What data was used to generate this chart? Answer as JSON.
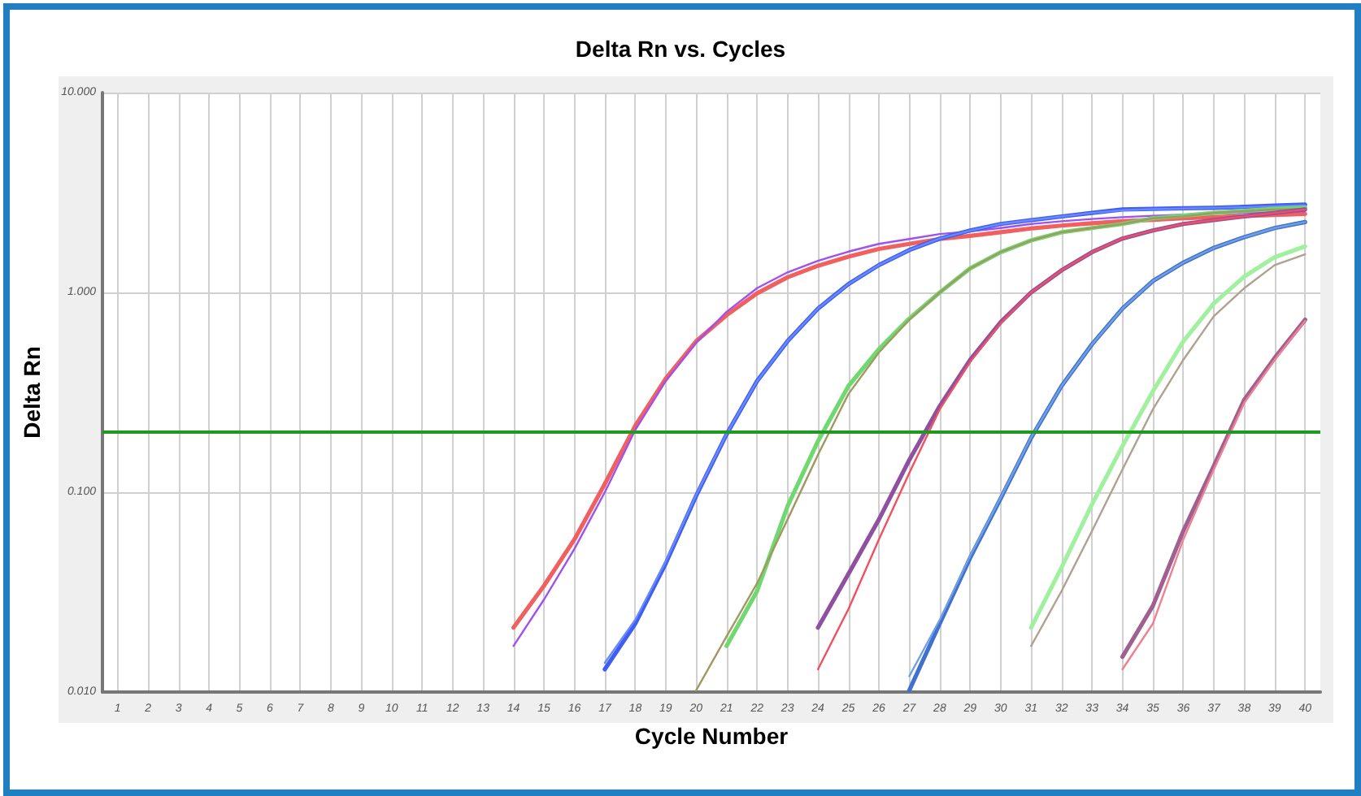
{
  "chart_data": {
    "type": "line",
    "title": "Delta Rn vs. Cycles",
    "xlabel": "Cycle Number",
    "ylabel": "Delta Rn",
    "log": "y",
    "grid": true,
    "marker": "none",
    "line_style": "solid",
    "xlim": [
      0.5,
      40.5
    ],
    "xticks": [
      1,
      2,
      3,
      4,
      5,
      6,
      7,
      8,
      9,
      10,
      11,
      12,
      13,
      14,
      15,
      16,
      17,
      18,
      19,
      20,
      21,
      22,
      23,
      24,
      25,
      26,
      27,
      28,
      29,
      30,
      31,
      32,
      33,
      34,
      35,
      36,
      37,
      38,
      39,
      40
    ],
    "ylim": [
      0.01,
      10
    ],
    "yticks": [
      {
        "value": 10,
        "label": "10.000"
      },
      {
        "value": 1,
        "label": "1.000"
      },
      {
        "value": 0.1,
        "label": "0.100"
      },
      {
        "value": 0.01,
        "label": "0.010"
      }
    ],
    "ref_lines": [
      {
        "axis": "y",
        "value": 0.2,
        "label": null,
        "color": "#1f9a1f"
      }
    ],
    "series": [
      {
        "color": "#f06060",
        "x": [
          14,
          15,
          16,
          17,
          18,
          19,
          20,
          21,
          22,
          23,
          24,
          25,
          26,
          27,
          28,
          29,
          30,
          31,
          32,
          33,
          34,
          35,
          36,
          37,
          38,
          39,
          40
        ],
        "values": [
          0.021,
          0.034,
          0.058,
          0.11,
          0.215,
          0.37,
          0.57,
          0.77,
          0.99,
          1.19,
          1.36,
          1.51,
          1.65,
          1.75,
          1.85,
          1.92,
          2.0,
          2.09,
          2.16,
          2.22,
          2.27,
          2.31,
          2.35,
          2.38,
          2.41,
          2.44,
          2.47
        ]
      },
      {
        "color": "#a050f0",
        "x": [
          14,
          15,
          16,
          17,
          18,
          19,
          20,
          21,
          22,
          23,
          24,
          25,
          26,
          27,
          28,
          29,
          30,
          31,
          32,
          33,
          34,
          35,
          36,
          37,
          38,
          39,
          40
        ],
        "values": [
          0.017,
          0.029,
          0.052,
          0.1,
          0.205,
          0.36,
          0.56,
          0.8,
          1.05,
          1.26,
          1.44,
          1.6,
          1.75,
          1.85,
          1.96,
          2.02,
          2.1,
          2.2,
          2.27,
          2.33,
          2.38,
          2.42,
          2.45,
          2.48,
          2.5,
          2.52,
          2.55
        ]
      },
      {
        "color": "#3f5ff0",
        "x": [
          17,
          18,
          19,
          20,
          21,
          22,
          23,
          24,
          25,
          26,
          27,
          28,
          29,
          30,
          31,
          32,
          33,
          34,
          35,
          36,
          37,
          38,
          39,
          40
        ],
        "values": [
          0.013,
          0.022,
          0.044,
          0.096,
          0.195,
          0.36,
          0.57,
          0.83,
          1.1,
          1.37,
          1.63,
          1.86,
          2.04,
          2.2,
          2.3,
          2.4,
          2.5,
          2.6,
          2.62,
          2.64,
          2.65,
          2.68,
          2.72,
          2.75
        ]
      },
      {
        "color": "#6a88ff",
        "x": [
          17,
          18,
          19,
          20,
          21,
          22,
          23,
          24,
          25,
          26,
          27,
          28,
          29,
          30,
          31,
          32,
          33,
          34,
          35,
          36,
          37,
          38,
          39,
          40
        ],
        "values": [
          0.014,
          0.023,
          0.045,
          0.097,
          0.196,
          0.36,
          0.57,
          0.83,
          1.1,
          1.37,
          1.63,
          1.86,
          2.04,
          2.2,
          2.3,
          2.4,
          2.5,
          2.58,
          2.61,
          2.63,
          2.65,
          2.67,
          2.7,
          2.73
        ]
      },
      {
        "color": "#70d870",
        "x": [
          21,
          22,
          23,
          24,
          25,
          26,
          27,
          28,
          29,
          30,
          31,
          32,
          33,
          34,
          35,
          36,
          37,
          38,
          39,
          40
        ],
        "values": [
          0.017,
          0.032,
          0.085,
          0.18,
          0.34,
          0.52,
          0.74,
          1.0,
          1.32,
          1.59,
          1.82,
          2.0,
          2.1,
          2.2,
          2.35,
          2.42,
          2.5,
          2.56,
          2.62,
          2.66
        ]
      },
      {
        "color": "#a09a60",
        "x": [
          20,
          21,
          22,
          23,
          24,
          25,
          26,
          27,
          28,
          29,
          30,
          31,
          32,
          33,
          34,
          35,
          36,
          37,
          38,
          39,
          40
        ],
        "values": [
          0.0102,
          0.019,
          0.035,
          0.073,
          0.154,
          0.31,
          0.5,
          0.73,
          1.0,
          1.32,
          1.59,
          1.82,
          2.0,
          2.1,
          2.2,
          2.35,
          2.4,
          2.5,
          2.55,
          2.6,
          2.62
        ]
      },
      {
        "color": "#9050a0",
        "x": [
          24,
          25,
          26,
          27,
          28,
          29,
          30,
          31,
          32,
          33,
          34,
          35,
          36,
          37,
          38,
          39,
          40
        ],
        "values": [
          0.021,
          0.039,
          0.073,
          0.145,
          0.27,
          0.46,
          0.71,
          1.0,
          1.29,
          1.59,
          1.86,
          2.04,
          2.2,
          2.3,
          2.4,
          2.5,
          2.6
        ]
      },
      {
        "color": "#f05060",
        "x": [
          24,
          25,
          26,
          27,
          28,
          29,
          30,
          31,
          32,
          33,
          34,
          35,
          36,
          37,
          38,
          39,
          40
        ],
        "values": [
          0.013,
          0.026,
          0.058,
          0.125,
          0.26,
          0.45,
          0.7,
          1.0,
          1.29,
          1.59,
          1.86,
          2.04,
          2.2,
          2.3,
          2.4,
          2.5,
          2.6
        ]
      },
      {
        "color": "#4070d0",
        "x": [
          27,
          28,
          29,
          30,
          31,
          32,
          33,
          34,
          35,
          36,
          37,
          38,
          39,
          40
        ],
        "values": [
          0.0102,
          0.022,
          0.047,
          0.093,
          0.187,
          0.34,
          0.55,
          0.83,
          1.14,
          1.41,
          1.67,
          1.89,
          2.1,
          2.25
        ]
      },
      {
        "color": "#70a0e0",
        "x": [
          27,
          28,
          29,
          30,
          31,
          32,
          33,
          34,
          35,
          36,
          37,
          38,
          39,
          40
        ],
        "values": [
          0.012,
          0.023,
          0.048,
          0.094,
          0.188,
          0.34,
          0.55,
          0.83,
          1.14,
          1.41,
          1.67,
          1.89,
          2.1,
          2.25
        ]
      },
      {
        "color": "#a0f0a0",
        "x": [
          31,
          32,
          33,
          34,
          35,
          36,
          37,
          38,
          39,
          40
        ],
        "values": [
          0.021,
          0.042,
          0.087,
          0.17,
          0.32,
          0.57,
          0.88,
          1.2,
          1.5,
          1.7
        ]
      },
      {
        "color": "#b0a090",
        "x": [
          31,
          32,
          33,
          34,
          35,
          36,
          37,
          38,
          39,
          40
        ],
        "values": [
          0.017,
          0.032,
          0.064,
          0.13,
          0.26,
          0.46,
          0.76,
          1.05,
          1.37,
          1.55
        ]
      },
      {
        "color": "#a06090",
        "x": [
          34,
          35,
          36,
          37,
          38,
          39,
          40
        ],
        "values": [
          0.015,
          0.027,
          0.064,
          0.135,
          0.29,
          0.47,
          0.73
        ]
      },
      {
        "color": "#f08090",
        "x": [
          34,
          35,
          36,
          37,
          38,
          39,
          40
        ],
        "values": [
          0.013,
          0.022,
          0.058,
          0.13,
          0.28,
          0.46,
          0.72
        ]
      }
    ]
  }
}
